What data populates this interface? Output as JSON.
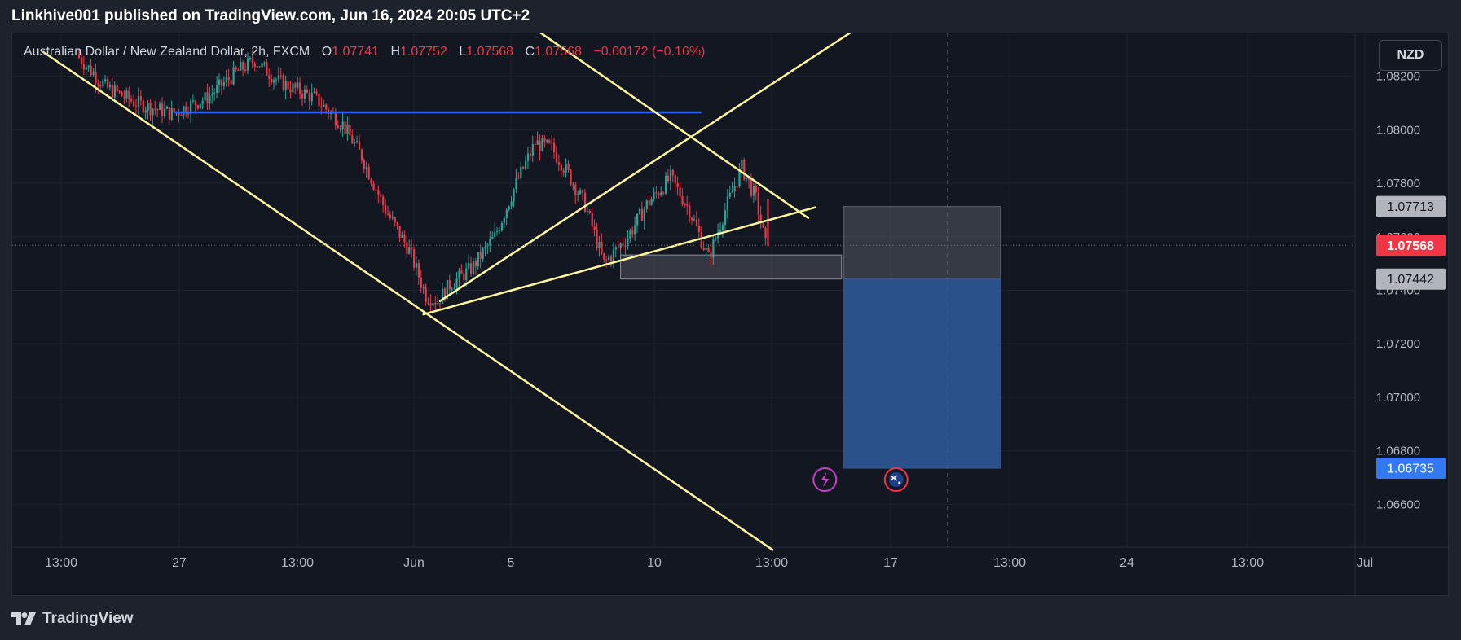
{
  "header": {
    "published_line": "Linkhive001 published on TradingView.com, Jun 16, 2024 20:05 UTC+2"
  },
  "legend": {
    "symbol": "Australian Dollar / New Zealand Dollar, 2h, FXCM",
    "open_label": "O",
    "open": "1.07741",
    "high_label": "H",
    "high": "1.07752",
    "low_label": "L",
    "low": "1.07568",
    "close_label": "C",
    "close": "1.07568",
    "change": "−0.00172 (−0.16%)"
  },
  "currency_button": "NZD",
  "footer": {
    "brand": "TradingView"
  },
  "colors": {
    "background": "#131722",
    "bull": "#26a69a",
    "bear": "#f23645",
    "trendline": "#fff59d",
    "support": "#2962ff",
    "target_zone": "#2f5a99",
    "entry_zone": "#d1d4dc"
  },
  "chart_data": {
    "type": "candlestick",
    "symbol": "Australian Dollar / New Zealand Dollar",
    "interval": "2h",
    "ylim": [
      1.0644,
      1.0836
    ],
    "y_ticks": [
      "1.08200",
      "1.08000",
      "1.07800",
      "1.07600",
      "1.07400",
      "1.07200",
      "1.07000",
      "1.06800",
      "1.06600"
    ],
    "x_ticks": [
      "13:00",
      "27",
      "13:00",
      "Jun",
      "5",
      "10",
      "13:00",
      "17",
      "13:00",
      "24",
      "13:00",
      "Jul"
    ],
    "grid": true,
    "price_labels": [
      {
        "value": "1.07713",
        "kind": "stop"
      },
      {
        "value": "1.07568",
        "kind": "last"
      },
      {
        "value": "1.07442",
        "kind": "entry"
      },
      {
        "value": "1.06735",
        "kind": "target"
      }
    ],
    "last_price": 1.07568,
    "path_anchors": [
      [
        0,
        1.0828
      ],
      [
        12,
        1.0816
      ],
      [
        25,
        1.081
      ],
      [
        40,
        1.0806
      ],
      [
        55,
        1.0812
      ],
      [
        68,
        1.0822
      ],
      [
        75,
        1.0826
      ],
      [
        85,
        1.0818
      ],
      [
        100,
        1.0812
      ],
      [
        112,
        1.0802
      ],
      [
        120,
        1.079
      ],
      [
        130,
        1.077
      ],
      [
        140,
        1.0755
      ],
      [
        147,
        1.0738
      ],
      [
        152,
        1.0736
      ],
      [
        157,
        1.0742
      ],
      [
        166,
        1.0748
      ],
      [
        176,
        1.076
      ],
      [
        185,
        1.078
      ],
      [
        193,
        1.0795
      ],
      [
        200,
        1.0793
      ],
      [
        206,
        1.0785
      ],
      [
        214,
        1.0772
      ],
      [
        222,
        1.075
      ],
      [
        232,
        1.076
      ],
      [
        240,
        1.0772
      ],
      [
        250,
        1.0782
      ],
      [
        258,
        1.077
      ],
      [
        266,
        1.0752
      ],
      [
        273,
        1.077
      ],
      [
        280,
        1.0786
      ],
      [
        286,
        1.0774
      ],
      [
        290,
        1.0757
      ]
    ],
    "horizontal_lines": [
      {
        "price": 1.08065,
        "from_index": 40,
        "to_index": 262,
        "color": "support"
      }
    ],
    "trend_lines": [
      {
        "from": [
          -15,
          1.0829
        ],
        "to": [
          292,
          1.0643
        ]
      },
      {
        "from": [
          152,
          1.0736
        ],
        "to": [
          326,
          1.0837
        ]
      },
      {
        "from": [
          145,
          1.0731
        ],
        "to": [
          310,
          1.0771
        ]
      },
      {
        "from": [
          123,
          1.088
        ],
        "to": [
          307,
          1.0767
        ]
      }
    ],
    "zones": [
      {
        "name": "entry",
        "from_index": 228,
        "to_index": 321,
        "top": 1.07532,
        "bottom": 1.07442
      },
      {
        "name": "stop",
        "from_index": 322,
        "to_index": 388,
        "top": 1.07713,
        "bottom": 1.07442
      },
      {
        "name": "target",
        "from_index": 322,
        "to_index": 388,
        "top": 1.07442,
        "bottom": 1.06735
      }
    ],
    "events": [
      {
        "name": "lightning-event",
        "index": 314
      },
      {
        "name": "australia-flag-event",
        "index": 344
      }
    ]
  }
}
